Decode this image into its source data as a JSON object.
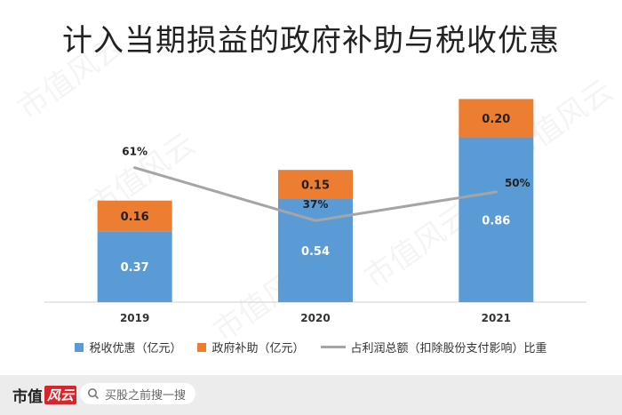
{
  "title": "计入当期损益的政府补助与税收优惠",
  "chart_data": {
    "type": "bar",
    "title": "计入当期损益的政府补助与税收优惠",
    "categories": [
      "2019",
      "2020",
      "2021"
    ],
    "stacked": true,
    "series": [
      {
        "name": "税收优惠（亿元）",
        "values": [
          0.37,
          0.54,
          0.86
        ],
        "color": "#5b9bd5",
        "axis": "left"
      },
      {
        "name": "政府补助（亿元）",
        "values": [
          0.16,
          0.15,
          0.2
        ],
        "color": "#ed7d31",
        "axis": "left"
      }
    ],
    "line_series": {
      "name": "占利润总额（扣除股份支付影响）比重",
      "values": [
        61,
        37,
        50
      ],
      "labels": [
        "61%",
        "37%",
        "50%"
      ],
      "color": "#a5a5a5",
      "axis": "right"
    },
    "ylim": [
      0,
      1.15
    ],
    "ylim_right": [
      0,
      100
    ],
    "legend_position": "bottom",
    "grid": false
  },
  "watermark": "市值风云",
  "footer": {
    "brand": "市值",
    "brand_logo": "风云",
    "search_placeholder": "买股之前搜一搜"
  }
}
